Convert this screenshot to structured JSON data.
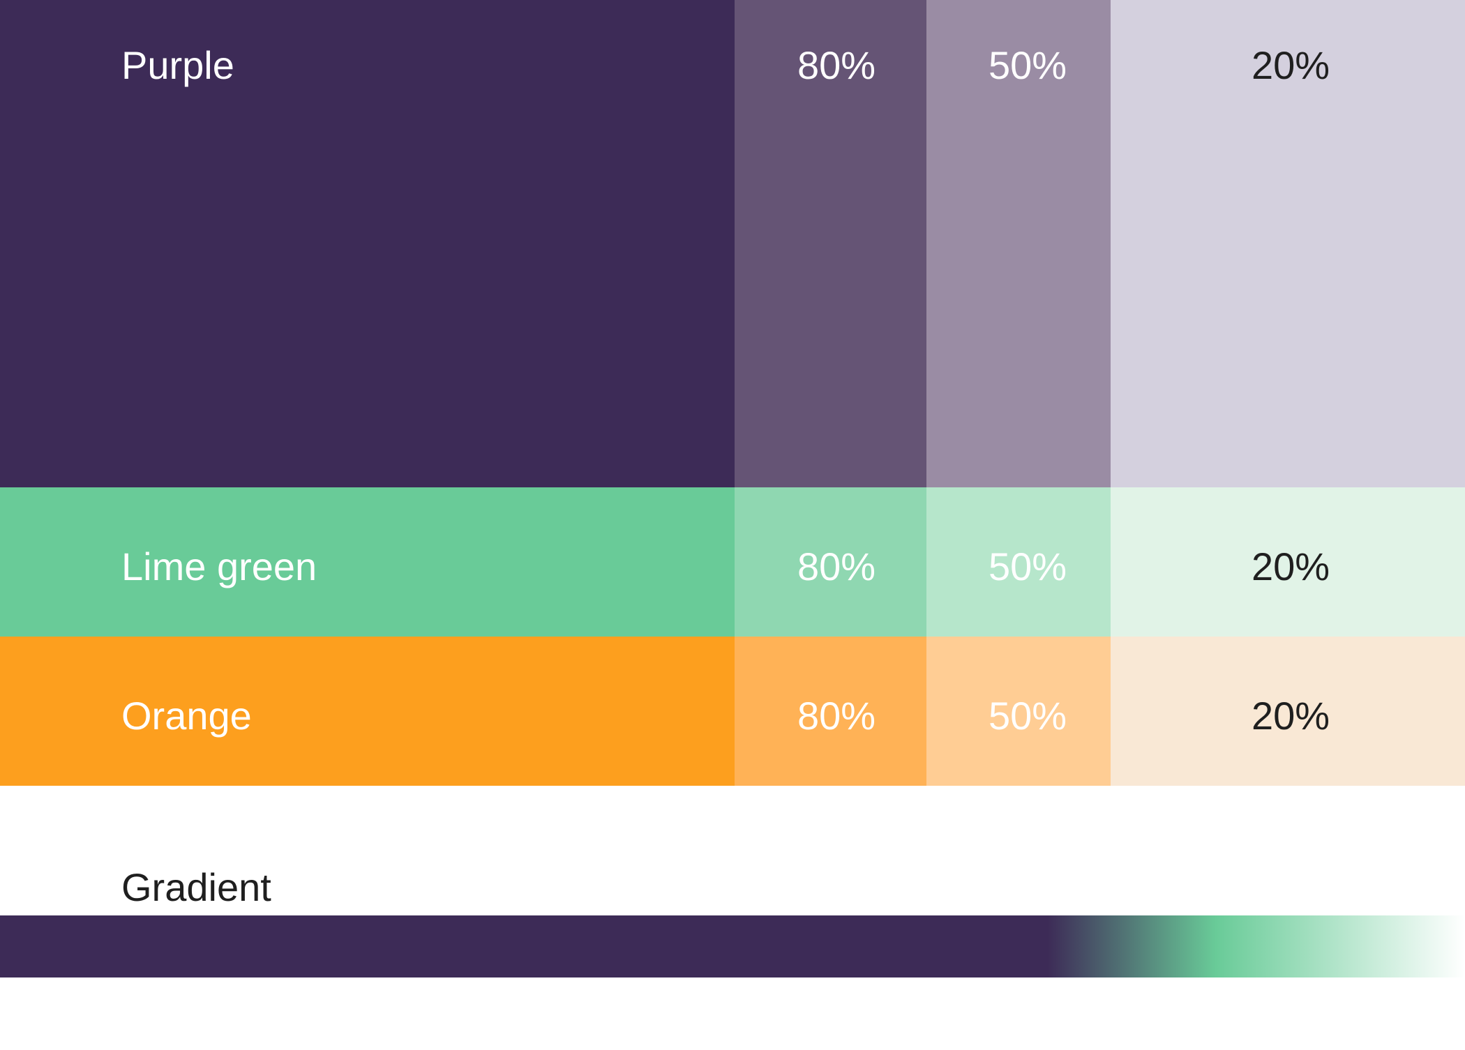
{
  "rows": [
    {
      "name": "Purple",
      "base_color": "#3d2b57",
      "tints": [
        {
          "label": "80%",
          "color": "#655475",
          "text_color": "#ffffff"
        },
        {
          "label": "50%",
          "color": "#9a8ca4",
          "text_color": "#ffffff"
        },
        {
          "label": "20%",
          "color": "#d4d0de",
          "text_color": "#1f1f1f"
        }
      ],
      "text_color": "#ffffff"
    },
    {
      "name": "Lime green",
      "base_color": "#69cb98",
      "tints": [
        {
          "label": "80%",
          "color": "#8fd7b1",
          "text_color": "#ffffff"
        },
        {
          "label": "50%",
          "color": "#b6e6cb",
          "text_color": "#ffffff"
        },
        {
          "label": "20%",
          "color": "#e1f3e7",
          "text_color": "#1f1f1f"
        }
      ],
      "text_color": "#ffffff"
    },
    {
      "name": "Orange",
      "base_color": "#fd9f1e",
      "tints": [
        {
          "label": "80%",
          "color": "#ffb256",
          "text_color": "#ffffff"
        },
        {
          "label": "50%",
          "color": "#ffcd94",
          "text_color": "#ffffff"
        },
        {
          "label": "20%",
          "color": "#f9e8d5",
          "text_color": "#1f1f1f"
        }
      ],
      "text_color": "#ffffff"
    }
  ],
  "gradient": {
    "title": "Gradient",
    "stops": [
      "#3d2b57",
      "#69cb98",
      "#ffffff"
    ]
  }
}
